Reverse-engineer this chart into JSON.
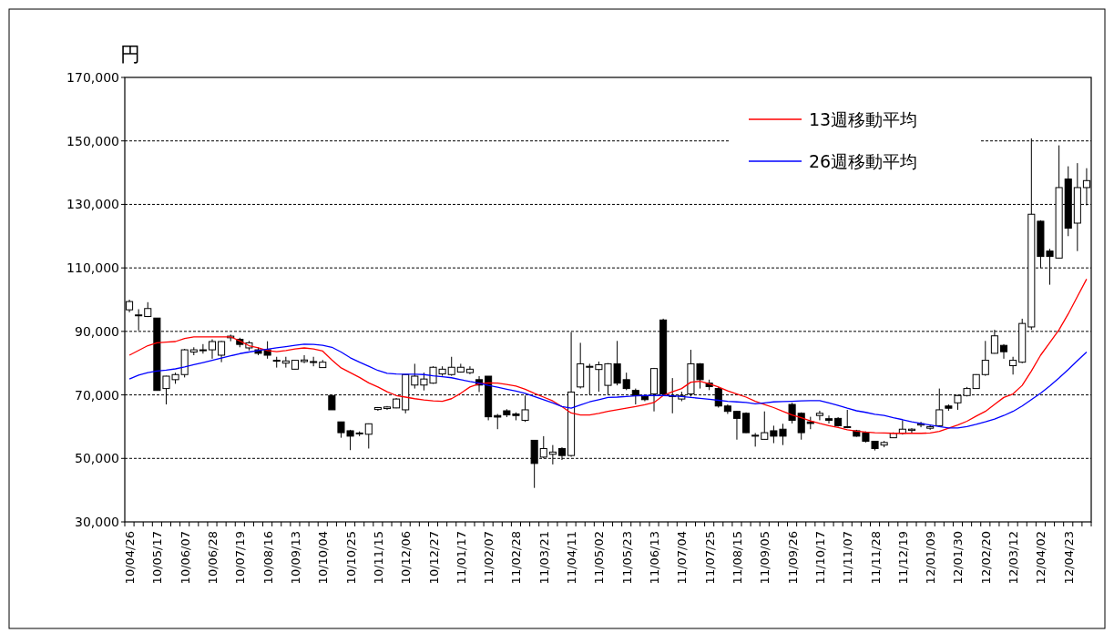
{
  "chart_data": {
    "type": "candlestick",
    "ylabel": "円",
    "categories": [
      "10/04/26",
      null,
      null,
      "10/05/17",
      null,
      null,
      "10/06/07",
      null,
      null,
      "10/06/28",
      null,
      null,
      "10/07/19",
      null,
      null,
      "10/08/16",
      null,
      null,
      "10/09/13",
      null,
      null,
      "10/10/04",
      null,
      null,
      "10/10/25",
      null,
      null,
      "10/11/15",
      null,
      null,
      "10/12/06",
      null,
      null,
      "10/12/27",
      null,
      null,
      "11/01/17",
      null,
      null,
      "11/02/07",
      null,
      null,
      "11/02/28",
      null,
      null,
      "11/03/21",
      null,
      null,
      "11/04/11",
      null,
      null,
      "11/05/02",
      null,
      null,
      "11/05/23",
      null,
      null,
      "11/06/13",
      null,
      null,
      "11/07/04",
      null,
      null,
      "11/07/25",
      null,
      null,
      "11/08/15",
      null,
      null,
      "11/09/05",
      null,
      null,
      "11/09/26",
      null,
      null,
      "11/10/17",
      null,
      null,
      "11/11/07",
      null,
      null,
      "11/11/28",
      null,
      null,
      "11/12/19",
      null,
      null,
      "12/01/09",
      null,
      null,
      "12/01/30",
      null,
      null,
      "12/02/20",
      null,
      null,
      "12/03/12",
      null,
      null,
      "12/04/02",
      null,
      null,
      "12/04/23",
      null,
      null
    ],
    "ohlc": [
      [
        96800,
        100000,
        96000,
        99400
      ],
      [
        95000,
        97000,
        90300,
        95200
      ],
      [
        94700,
        99200,
        94500,
        97200
      ],
      [
        94200,
        94200,
        71400,
        71400
      ],
      [
        72000,
        76000,
        67000,
        75900
      ],
      [
        74800,
        77000,
        73500,
        76400
      ],
      [
        76400,
        84500,
        75500,
        84200
      ],
      [
        83500,
        85000,
        82500,
        84200
      ],
      [
        84200,
        86000,
        83000,
        84000
      ],
      [
        84200,
        87500,
        81400,
        86800
      ],
      [
        82500,
        87000,
        80300,
        86800
      ],
      [
        88000,
        89000,
        86900,
        88500
      ],
      [
        87500,
        88000,
        85000,
        85900
      ],
      [
        84800,
        87000,
        84000,
        86400
      ],
      [
        84200,
        85000,
        82500,
        83100
      ],
      [
        84200,
        86900,
        81400,
        82500
      ],
      [
        80900,
        82000,
        78600,
        80800
      ],
      [
        80000,
        82000,
        78600,
        80700
      ],
      [
        78100,
        81000,
        78000,
        80900
      ],
      [
        80500,
        82500,
        80000,
        81000
      ],
      [
        80500,
        82000,
        79000,
        80200
      ],
      [
        78600,
        81000,
        78500,
        80300
      ],
      [
        69800,
        69800,
        65300,
        65300
      ],
      [
        61500,
        61500,
        56500,
        58100
      ],
      [
        58700,
        59000,
        52600,
        57000
      ],
      [
        57800,
        58500,
        57000,
        58000
      ],
      [
        57600,
        61000,
        53100,
        60900
      ],
      [
        65400,
        66200,
        65000,
        66000
      ],
      [
        65700,
        66500,
        65300,
        66200
      ],
      [
        65900,
        69000,
        65800,
        68700
      ],
      [
        65300,
        76400,
        64200,
        76400
      ],
      [
        73100,
        79800,
        72000,
        75900
      ],
      [
        73100,
        77000,
        71400,
        75000
      ],
      [
        73700,
        79000,
        73500,
        78700
      ],
      [
        76600,
        79000,
        76000,
        78100
      ],
      [
        76400,
        82000,
        76000,
        78700
      ],
      [
        77200,
        79800,
        77000,
        78700
      ],
      [
        77000,
        79000,
        76500,
        78100
      ],
      [
        74800,
        75900,
        70900,
        73100
      ],
      [
        75900,
        75900,
        62000,
        63100
      ],
      [
        63500,
        64000,
        59200,
        63000
      ],
      [
        65000,
        65500,
        63000,
        63700
      ],
      [
        64000,
        64500,
        62000,
        63500
      ],
      [
        62000,
        69800,
        61500,
        65300
      ],
      [
        55700,
        55700,
        40700,
        48400
      ],
      [
        50400,
        57000,
        50000,
        53100
      ],
      [
        51300,
        54200,
        48100,
        52000
      ],
      [
        53100,
        53500,
        49500,
        50900
      ],
      [
        50900,
        89800,
        50500,
        70900
      ],
      [
        72500,
        86400,
        72000,
        79800
      ],
      [
        78700,
        79800,
        70000,
        79000
      ],
      [
        78000,
        80500,
        71000,
        79500
      ],
      [
        73000,
        80000,
        70000,
        79800
      ],
      [
        79800,
        87000,
        73000,
        73700
      ],
      [
        74800,
        77000,
        71500,
        72000
      ],
      [
        71400,
        72000,
        67000,
        69800
      ],
      [
        69500,
        70000,
        68000,
        68500
      ],
      [
        70300,
        78500,
        64800,
        78300
      ],
      [
        93600,
        94000,
        70000,
        70300
      ],
      [
        69800,
        75300,
        64200,
        69700
      ],
      [
        68700,
        71000,
        68000,
        69800
      ],
      [
        70300,
        84200,
        69500,
        79800
      ],
      [
        79800,
        80000,
        72000,
        74800
      ],
      [
        73700,
        74800,
        71500,
        72600
      ],
      [
        72000,
        72500,
        66000,
        66500
      ],
      [
        66500,
        67000,
        64000,
        64800
      ],
      [
        64800,
        65000,
        55900,
        62600
      ],
      [
        64200,
        64500,
        58000,
        58100
      ],
      [
        57000,
        58000,
        53700,
        57300
      ],
      [
        56000,
        64800,
        56000,
        58100
      ],
      [
        58700,
        60300,
        54800,
        57000
      ],
      [
        59200,
        60900,
        54200,
        57000
      ],
      [
        67000,
        67500,
        61000,
        62000
      ],
      [
        64200,
        64500,
        55900,
        58100
      ],
      [
        61500,
        63100,
        59200,
        61000
      ],
      [
        63500,
        65000,
        62000,
        64200
      ],
      [
        62500,
        63500,
        61000,
        62000
      ],
      [
        62600,
        63000,
        60000,
        60300
      ],
      [
        60000,
        65300,
        59500,
        59800
      ],
      [
        58700,
        59000,
        56800,
        57000
      ],
      [
        58100,
        58500,
        55000,
        55400
      ],
      [
        55400,
        55500,
        52500,
        53100
      ],
      [
        54200,
        55500,
        53500,
        55000
      ],
      [
        56500,
        58200,
        56500,
        57900
      ],
      [
        57900,
        62000,
        57500,
        59200
      ],
      [
        58800,
        59500,
        58000,
        59200
      ],
      [
        60500,
        61500,
        59800,
        60900
      ],
      [
        59500,
        60500,
        59000,
        60000
      ],
      [
        60300,
        72000,
        60000,
        65300
      ],
      [
        66500,
        67000,
        65000,
        65800
      ],
      [
        67500,
        70000,
        65300,
        69800
      ],
      [
        69800,
        72500,
        69500,
        72000
      ],
      [
        72000,
        76500,
        72000,
        76400
      ],
      [
        76400,
        87000,
        76000,
        80900
      ],
      [
        83100,
        90500,
        83000,
        88600
      ],
      [
        85600,
        86000,
        81400,
        83600
      ],
      [
        79200,
        82000,
        76400,
        80900
      ],
      [
        80300,
        94000,
        80000,
        92500
      ],
      [
        91400,
        150800,
        90500,
        126900
      ],
      [
        124700,
        125000,
        110000,
        113600
      ],
      [
        115300,
        116000,
        104700,
        113600
      ],
      [
        113100,
        148600,
        113000,
        135300
      ],
      [
        138000,
        142000,
        120000,
        122500
      ],
      [
        124100,
        143000,
        115300,
        135300
      ],
      [
        135300,
        141400,
        129700,
        137500
      ]
    ],
    "series": [
      {
        "name": "13週移動平均",
        "type": "line",
        "color": "#ff0000",
        "values": [
          82500,
          84000,
          85500,
          86400,
          86600,
          86800,
          87800,
          88300,
          88300,
          88300,
          88300,
          88300,
          87000,
          85500,
          84800,
          84000,
          83600,
          84000,
          84500,
          84800,
          84500,
          83800,
          81000,
          78500,
          77000,
          75500,
          73800,
          72500,
          71000,
          69800,
          69300,
          68800,
          68400,
          68100,
          68000,
          68800,
          70500,
          72500,
          73500,
          73800,
          73700,
          73300,
          72800,
          71800,
          70500,
          69300,
          68100,
          66300,
          64300,
          63700,
          63700,
          64200,
          64800,
          65300,
          65800,
          66300,
          66900,
          67600,
          69800,
          71000,
          72000,
          74000,
          74300,
          73500,
          72500,
          71300,
          70300,
          69300,
          68000,
          67000,
          66000,
          64800,
          63700,
          62800,
          61800,
          61000,
          60300,
          59700,
          59000,
          58600,
          58300,
          58100,
          58000,
          57900,
          57900,
          57900,
          57900,
          58000,
          58500,
          59500,
          60500,
          61700,
          63300,
          64800,
          67000,
          69200,
          70300,
          73000,
          77500,
          82500,
          86500,
          90500,
          95500,
          101000,
          106500
        ]
      },
      {
        "name": "26週移動平均",
        "type": "line",
        "color": "#0000ff",
        "values": [
          75000,
          76200,
          77000,
          77500,
          77800,
          78200,
          78800,
          79500,
          80200,
          80900,
          81600,
          82300,
          83000,
          83500,
          84000,
          84400,
          84800,
          85200,
          85600,
          86000,
          85900,
          85600,
          85000,
          83500,
          81700,
          80300,
          79000,
          77700,
          76800,
          76600,
          76500,
          76500,
          76400,
          76000,
          75700,
          75400,
          74800,
          74200,
          73700,
          73000,
          72400,
          71800,
          71200,
          70500,
          69500,
          68500,
          67500,
          66300,
          65800,
          66800,
          67800,
          68500,
          69200,
          69300,
          69500,
          69700,
          69800,
          69800,
          69800,
          69700,
          69500,
          69200,
          68900,
          68600,
          68300,
          68000,
          67800,
          67600,
          67200,
          67500,
          67800,
          67900,
          68000,
          68100,
          68200,
          68200,
          67500,
          66700,
          65800,
          65000,
          64500,
          63900,
          63500,
          62800,
          62200,
          61500,
          61000,
          60500,
          60000,
          59600,
          59600,
          60000,
          60700,
          61500,
          62400,
          63500,
          64800,
          66500,
          68500,
          70500,
          72800,
          75300,
          78000,
          80800,
          83500
        ]
      }
    ],
    "ylim": [
      30000,
      170000
    ],
    "yticks": [
      {
        "value": 30000,
        "label": "30,000"
      },
      {
        "value": 50000,
        "label": "50,000"
      },
      {
        "value": 70000,
        "label": "70,000"
      },
      {
        "value": 90000,
        "label": "90,000"
      },
      {
        "value": 110000,
        "label": "110,000"
      },
      {
        "value": 130000,
        "label": "130,000"
      },
      {
        "value": 150000,
        "label": "150,000"
      },
      {
        "value": 170000,
        "label": "170,000"
      }
    ],
    "grid": "y",
    "legend": "top right"
  }
}
